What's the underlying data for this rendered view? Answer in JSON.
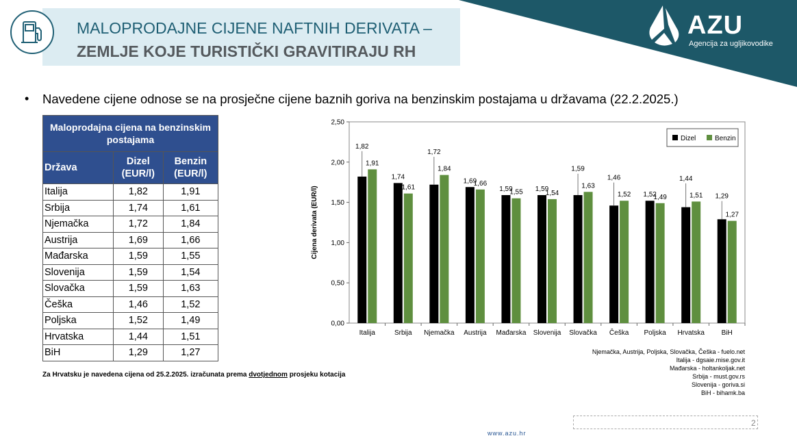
{
  "slide": {
    "title_line1": "MALOPRODAJNE CIJENE NAFTNIH DERIVATA –",
    "title_line2": "ZEMLJE KOJE TURISTIČKI GRAVITIRAJU RH",
    "logo_name": "AZU",
    "logo_subtitle": "Agencija za ugljikovodike",
    "bullet": "Navedene cijene odnose se na prosječne cijene baznih goriva na benzinskim postajama u državama (22.2.2025.)",
    "footnote_a": "Za Hrvatsku je navedena cijena od 25.2.2025. izračunata prema ",
    "footnote_u": "dvotjednom",
    "footnote_b": " prosjeku kotacija",
    "footer_url": "www.azu.hr",
    "page_number": "2",
    "icons": {
      "title": "fuel-pump-icon",
      "logo": "drop-mark-icon"
    },
    "colors": {
      "primary": "#1f5f74",
      "title_box": "#dcecf2",
      "corner": "#1d5868",
      "table_header": "#2f4f8f"
    }
  },
  "table": {
    "header_main": "Maloprodajna cijena na benzinskim postajama",
    "col_country": "Država",
    "col_diesel": "Dizel (EUR/l)",
    "col_petrol": "Benzin (EUR/l)",
    "rows": [
      {
        "country": "Italija",
        "diesel": "1,82",
        "petrol": "1,91"
      },
      {
        "country": "Srbija",
        "diesel": "1,74",
        "petrol": "1,61"
      },
      {
        "country": "Njemačka",
        "diesel": "1,72",
        "petrol": "1,84"
      },
      {
        "country": "Austrija",
        "diesel": "1,69",
        "petrol": "1,66"
      },
      {
        "country": "Mađarska",
        "diesel": "1,59",
        "petrol": "1,55"
      },
      {
        "country": "Slovenija",
        "diesel": "1,59",
        "petrol": "1,54"
      },
      {
        "country": "Slovačka",
        "diesel": "1,59",
        "petrol": "1,63"
      },
      {
        "country": "Češka",
        "diesel": "1,46",
        "petrol": "1,52"
      },
      {
        "country": "Poljska",
        "diesel": "1,52",
        "petrol": "1,49"
      },
      {
        "country": "Hrvatska",
        "diesel": "1,44",
        "petrol": "1,51"
      },
      {
        "country": "BiH",
        "diesel": "1,29",
        "petrol": "1,27"
      }
    ]
  },
  "sources": [
    "Njemačka, Austrija, Poljska, Slovačka, Češka - fuelo.net",
    "Italija - dgsaie.mise.gov.it",
    "Mađarska - holtankoljak.net",
    "Srbija - must.gov.rs",
    "Slovenija - goriva.si",
    "BiH - bihamk.ba"
  ],
  "chart_data": {
    "type": "bar",
    "categories": [
      "Italija",
      "Srbija",
      "Njemačka",
      "Austrija",
      "Mađarska",
      "Slovenija",
      "Slovačka",
      "Češka",
      "Poljska",
      "Hrvatska",
      "BiH"
    ],
    "series": [
      {
        "name": "Dizel",
        "color": "#000000",
        "values": [
          1.82,
          1.74,
          1.72,
          1.69,
          1.59,
          1.59,
          1.59,
          1.46,
          1.52,
          1.44,
          1.29
        ]
      },
      {
        "name": "Benzin",
        "color": "#5f8f3f",
        "values": [
          1.91,
          1.61,
          1.84,
          1.66,
          1.55,
          1.54,
          1.63,
          1.52,
          1.49,
          1.51,
          1.27
        ]
      }
    ],
    "value_labels": [
      [
        "1,82",
        "1,74",
        "1,72",
        "1,69",
        "1,59",
        "1,59",
        "1,59",
        "1,46",
        "1,52",
        "1,44",
        "1,29"
      ],
      [
        "1,91",
        "1,61",
        "1,84",
        "1,66",
        "1,55",
        "1,54",
        "1,63",
        "1,52",
        "1,49",
        "1,51",
        "1,27"
      ]
    ],
    "ylabel": "Cijena derivata (EUR/l)",
    "ylim": [
      0,
      2.5
    ],
    "yticks": [
      "0,00",
      "0,50",
      "1,00",
      "1,50",
      "2,00",
      "2,50"
    ],
    "grid": false,
    "legend_position": "top-right"
  }
}
